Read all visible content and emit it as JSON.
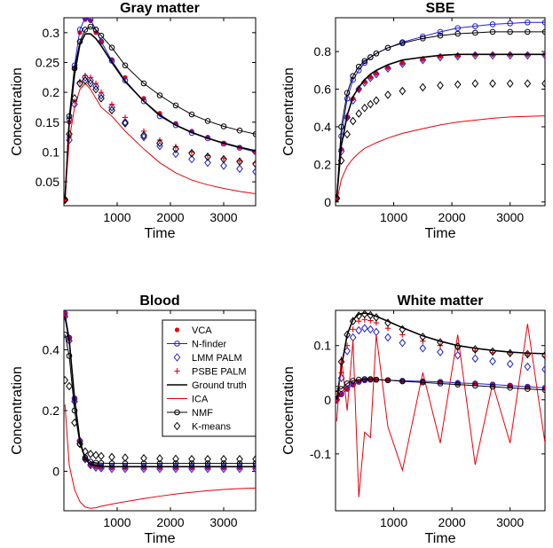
{
  "colors": {
    "vca": "#e8000b",
    "nfinder": "#1f1fd6",
    "lmm": "#1f1fd6",
    "psbe": "#e8000b",
    "truth": "#000000",
    "ica": "#e8000b",
    "nmf": "#000000",
    "kmeans": "#000000"
  },
  "legend": [
    {
      "name": "VCA",
      "marker": "dot",
      "color": "#e8000b"
    },
    {
      "name": "N-finder",
      "marker": "circle-line",
      "color": "#1f1fd6"
    },
    {
      "name": "LMM PALM",
      "marker": "diamond",
      "color": "#1f1fd6"
    },
    {
      "name": "PSBE PALM",
      "marker": "plus",
      "color": "#e8000b"
    },
    {
      "name": "Ground truth",
      "marker": "line",
      "color": "#000000"
    },
    {
      "name": "ICA",
      "marker": "line",
      "color": "#e8000b"
    },
    {
      "name": "NMF",
      "marker": "circle-line",
      "color": "#000000"
    },
    {
      "name": "K-means",
      "marker": "diamond",
      "color": "#000000"
    }
  ],
  "chart_data": [
    {
      "type": "line",
      "title": "Gray matter",
      "xlabel": "Time",
      "ylabel": "Concentration",
      "xlim": [
        0,
        3600
      ],
      "ylim": [
        0.01,
        0.325
      ],
      "xticks": [
        1000,
        2000,
        3000
      ],
      "yticks": [
        0.05,
        0.1,
        0.15,
        0.2,
        0.25,
        0.3
      ],
      "ytick_labels": [
        "0.05",
        "0.1",
        "0.15",
        "0.2",
        "0.25",
        "0.3"
      ],
      "x": [
        20,
        100,
        200,
        300,
        400,
        500,
        600,
        700,
        900,
        1150,
        1500,
        1800,
        2100,
        2400,
        2700,
        3000,
        3300,
        3600
      ],
      "series": [
        {
          "name": "VCA",
          "style": "dot",
          "color": "#e8000b",
          "values": [
            0.02,
            0.15,
            0.24,
            0.3,
            0.322,
            0.32,
            0.3,
            0.285,
            0.255,
            0.225,
            0.19,
            0.165,
            0.148,
            0.135,
            0.125,
            0.115,
            0.108,
            0.1
          ]
        },
        {
          "name": "N-finder",
          "style": "circle-line",
          "color": "#1f1fd6",
          "values": [
            0.02,
            0.155,
            0.245,
            0.305,
            0.325,
            0.322,
            0.305,
            0.285,
            0.253,
            0.22,
            0.185,
            0.16,
            0.145,
            0.132,
            0.123,
            0.114,
            0.107,
            0.1
          ]
        },
        {
          "name": "LMM PALM",
          "style": "diamond",
          "color": "#1f1fd6",
          "values": [
            0.02,
            0.12,
            0.18,
            0.215,
            0.225,
            0.22,
            0.21,
            0.195,
            0.175,
            0.15,
            0.125,
            0.11,
            0.097,
            0.088,
            0.082,
            0.077,
            0.072,
            0.067
          ]
        },
        {
          "name": "PSBE PALM",
          "style": "plus",
          "color": "#e8000b",
          "values": [
            0.02,
            0.125,
            0.185,
            0.218,
            0.228,
            0.225,
            0.215,
            0.2,
            0.18,
            0.158,
            0.135,
            0.12,
            0.109,
            0.1,
            0.094,
            0.089,
            0.085,
            0.082
          ]
        },
        {
          "name": "Ground truth",
          "style": "line",
          "color": "#000000",
          "values": [
            0.02,
            0.15,
            0.23,
            0.28,
            0.298,
            0.298,
            0.29,
            0.278,
            0.25,
            0.218,
            0.185,
            0.162,
            0.145,
            0.133,
            0.123,
            0.115,
            0.108,
            0.102
          ]
        },
        {
          "name": "ICA",
          "style": "line",
          "color": "#e8000b",
          "values": [
            0.02,
            0.12,
            0.175,
            0.205,
            0.215,
            0.205,
            0.19,
            0.175,
            0.16,
            0.135,
            0.105,
            0.082,
            0.065,
            0.053,
            0.045,
            0.039,
            0.034,
            0.03
          ]
        },
        {
          "name": "NMF",
          "style": "circle-line",
          "color": "#000000",
          "values": [
            0.02,
            0.16,
            0.24,
            0.285,
            0.305,
            0.31,
            0.305,
            0.295,
            0.275,
            0.245,
            0.215,
            0.195,
            0.178,
            0.163,
            0.152,
            0.143,
            0.136,
            0.13
          ]
        },
        {
          "name": "K-means",
          "style": "diamond",
          "color": "#000000",
          "values": [
            0.02,
            0.13,
            0.19,
            0.215,
            0.22,
            0.215,
            0.205,
            0.19,
            0.17,
            0.148,
            0.128,
            0.115,
            0.105,
            0.098,
            0.092,
            0.088,
            0.084,
            0.08
          ]
        }
      ]
    },
    {
      "type": "line",
      "title": "SBE",
      "xlabel": "Time",
      "ylabel": "Concentration",
      "xlim": [
        0,
        3600
      ],
      "ylim": [
        -0.02,
        0.98
      ],
      "xticks": [
        1000,
        2000,
        3000
      ],
      "yticks": [
        0,
        0.2,
        0.4,
        0.6,
        0.8
      ],
      "ytick_labels": [
        "0",
        "0.2",
        "0.4",
        "0.6",
        "0.8"
      ],
      "x": [
        20,
        100,
        200,
        300,
        400,
        500,
        600,
        700,
        900,
        1150,
        1500,
        1800,
        2100,
        2400,
        2700,
        3000,
        3300,
        3600
      ],
      "series": [
        {
          "name": "VCA",
          "style": "dot",
          "color": "#e8000b",
          "values": [
            0.02,
            0.28,
            0.45,
            0.55,
            0.6,
            0.64,
            0.665,
            0.685,
            0.715,
            0.74,
            0.76,
            0.775,
            0.78,
            0.785,
            0.785,
            0.785,
            0.785,
            0.785
          ]
        },
        {
          "name": "N-finder",
          "style": "circle-line",
          "color": "#1f1fd6",
          "values": [
            0.02,
            0.35,
            0.55,
            0.65,
            0.7,
            0.74,
            0.77,
            0.79,
            0.82,
            0.85,
            0.88,
            0.905,
            0.925,
            0.935,
            0.945,
            0.95,
            0.955,
            0.955
          ]
        },
        {
          "name": "LMM PALM",
          "style": "diamond",
          "color": "#1f1fd6",
          "values": [
            0.02,
            0.27,
            0.45,
            0.54,
            0.6,
            0.635,
            0.66,
            0.68,
            0.71,
            0.735,
            0.755,
            0.77,
            0.775,
            0.78,
            0.78,
            0.78,
            0.78,
            0.78
          ]
        },
        {
          "name": "PSBE PALM",
          "style": "plus",
          "color": "#e8000b",
          "values": [
            0.02,
            0.28,
            0.46,
            0.55,
            0.6,
            0.64,
            0.665,
            0.685,
            0.715,
            0.74,
            0.76,
            0.775,
            0.78,
            0.785,
            0.785,
            0.785,
            0.785,
            0.785
          ]
        },
        {
          "name": "Ground truth",
          "style": "line",
          "color": "#000000",
          "values": [
            0.02,
            0.3,
            0.46,
            0.56,
            0.61,
            0.65,
            0.68,
            0.7,
            0.73,
            0.755,
            0.77,
            0.78,
            0.785,
            0.785,
            0.785,
            0.785,
            0.785,
            0.785
          ]
        },
        {
          "name": "ICA",
          "style": "line",
          "color": "#e8000b",
          "values": [
            0.0,
            0.12,
            0.19,
            0.23,
            0.26,
            0.285,
            0.3,
            0.315,
            0.34,
            0.365,
            0.39,
            0.41,
            0.425,
            0.435,
            0.445,
            0.452,
            0.455,
            0.458
          ]
        },
        {
          "name": "NMF",
          "style": "circle-line",
          "color": "#000000",
          "values": [
            0.02,
            0.4,
            0.58,
            0.67,
            0.72,
            0.75,
            0.77,
            0.79,
            0.82,
            0.845,
            0.87,
            0.885,
            0.895,
            0.9,
            0.905,
            0.905,
            0.905,
            0.905
          ]
        },
        {
          "name": "K-means",
          "style": "diamond",
          "color": "#000000",
          "values": [
            0.02,
            0.22,
            0.36,
            0.43,
            0.47,
            0.5,
            0.52,
            0.54,
            0.57,
            0.59,
            0.61,
            0.62,
            0.625,
            0.63,
            0.63,
            0.63,
            0.63,
            0.63
          ]
        }
      ]
    },
    {
      "type": "line",
      "title": "Blood",
      "xlabel": "Time",
      "ylabel": "Concentration",
      "xlim": [
        0,
        3600
      ],
      "ylim": [
        -0.13,
        0.53
      ],
      "xticks": [
        1000,
        2000,
        3000
      ],
      "yticks": [
        0,
        0.2,
        0.4
      ],
      "ytick_labels": [
        "0",
        "0.2",
        "0.4"
      ],
      "x": [
        20,
        100,
        200,
        300,
        400,
        500,
        600,
        700,
        900,
        1150,
        1500,
        1800,
        2100,
        2400,
        2700,
        3000,
        3300,
        3600
      ],
      "series": [
        {
          "name": "VCA",
          "style": "dot",
          "color": "#e8000b",
          "values": [
            0.52,
            0.44,
            0.24,
            0.1,
            0.04,
            0.02,
            0.015,
            0.013,
            0.012,
            0.012,
            0.012,
            0.012,
            0.012,
            0.012,
            0.012,
            0.012,
            0.012,
            0.012
          ]
        },
        {
          "name": "N-finder",
          "style": "circle-line",
          "color": "#1f1fd6",
          "values": [
            0.52,
            0.44,
            0.24,
            0.1,
            0.04,
            0.022,
            0.018,
            0.016,
            0.015,
            0.015,
            0.015,
            0.015,
            0.015,
            0.015,
            0.015,
            0.015,
            0.015,
            0.015
          ]
        },
        {
          "name": "LMM PALM",
          "style": "diamond",
          "color": "#1f1fd6",
          "values": [
            0.51,
            0.43,
            0.23,
            0.1,
            0.04,
            0.02,
            0.012,
            0.01,
            0.008,
            0.008,
            0.008,
            0.008,
            0.008,
            0.008,
            0.008,
            0.008,
            0.008,
            0.008
          ]
        },
        {
          "name": "PSBE PALM",
          "style": "plus",
          "color": "#e8000b",
          "values": [
            0.51,
            0.43,
            0.23,
            0.1,
            0.04,
            0.02,
            0.014,
            0.012,
            0.011,
            0.011,
            0.011,
            0.011,
            0.011,
            0.011,
            0.011,
            0.011,
            0.011,
            0.011
          ]
        },
        {
          "name": "Ground truth",
          "style": "line",
          "color": "#000000",
          "values": [
            0.51,
            0.43,
            0.24,
            0.1,
            0.04,
            0.022,
            0.018,
            0.016,
            0.015,
            0.015,
            0.015,
            0.015,
            0.015,
            0.015,
            0.015,
            0.015,
            0.015,
            0.015
          ]
        },
        {
          "name": "ICA",
          "style": "line",
          "color": "#e8000b",
          "values": [
            0.22,
            0.02,
            -0.06,
            -0.1,
            -0.118,
            -0.122,
            -0.12,
            -0.115,
            -0.108,
            -0.1,
            -0.09,
            -0.082,
            -0.075,
            -0.069,
            -0.064,
            -0.06,
            -0.057,
            -0.055
          ]
        },
        {
          "name": "NMF",
          "style": "circle-line",
          "color": "#000000",
          "values": [
            0.45,
            0.38,
            0.2,
            0.09,
            0.045,
            0.032,
            0.028,
            0.027,
            0.026,
            0.026,
            0.026,
            0.026,
            0.026,
            0.026,
            0.026,
            0.026,
            0.026,
            0.026
          ]
        },
        {
          "name": "K-means",
          "style": "diamond",
          "color": "#000000",
          "values": [
            0.3,
            0.28,
            0.16,
            0.09,
            0.065,
            0.057,
            0.053,
            0.05,
            0.047,
            0.045,
            0.043,
            0.042,
            0.041,
            0.04,
            0.04,
            0.04,
            0.04,
            0.04
          ]
        }
      ]
    },
    {
      "type": "line",
      "title": "White matter",
      "xlabel": "Time",
      "ylabel": "Concentration",
      "xlim": [
        0,
        3600
      ],
      "ylim": [
        -0.205,
        0.165
      ],
      "xticks": [
        1000,
        2000,
        3000
      ],
      "yticks": [
        -0.1,
        0,
        0.1
      ],
      "ytick_labels": [
        "-0.1",
        "0",
        "0.1"
      ],
      "x": [
        20,
        100,
        200,
        300,
        400,
        500,
        600,
        700,
        900,
        1150,
        1500,
        1800,
        2100,
        2400,
        2700,
        3000,
        3300,
        3600
      ],
      "series": [
        {
          "name": "VCA",
          "style": "dot",
          "color": "#e8000b",
          "values": [
            0.0,
            0.01,
            0.02,
            0.028,
            0.033,
            0.036,
            0.037,
            0.037,
            0.036,
            0.035,
            0.034,
            0.033,
            0.031,
            0.03,
            0.028,
            0.026,
            0.024,
            0.022
          ]
        },
        {
          "name": "N-finder",
          "style": "circle-line",
          "color": "#1f1fd6",
          "values": [
            0.0,
            0.01,
            0.02,
            0.028,
            0.033,
            0.036,
            0.037,
            0.037,
            0.036,
            0.035,
            0.034,
            0.033,
            0.031,
            0.03,
            0.028,
            0.026,
            0.024,
            0.022
          ]
        },
        {
          "name": "LMM PALM",
          "style": "diamond",
          "color": "#1f1fd6",
          "values": [
            0.0,
            0.04,
            0.09,
            0.115,
            0.128,
            0.132,
            0.13,
            0.125,
            0.115,
            0.105,
            0.095,
            0.088,
            0.082,
            0.076,
            0.071,
            0.066,
            0.061,
            0.056
          ]
        },
        {
          "name": "PSBE PALM",
          "style": "plus",
          "color": "#e8000b",
          "values": [
            0.0,
            0.05,
            0.1,
            0.13,
            0.145,
            0.148,
            0.146,
            0.142,
            0.132,
            0.12,
            0.108,
            0.1,
            0.095,
            0.09,
            0.087,
            0.085,
            0.083,
            0.08
          ]
        },
        {
          "name": "Ground truth",
          "style": "line",
          "color": "#000000",
          "values": [
            0.0,
            0.06,
            0.12,
            0.148,
            0.158,
            0.16,
            0.158,
            0.154,
            0.145,
            0.133,
            0.118,
            0.108,
            0.1,
            0.095,
            0.091,
            0.088,
            0.086,
            0.085
          ]
        },
        {
          "name": "ICA",
          "style": "line",
          "color": "#e8000b",
          "values": [
            -0.04,
            0.08,
            -0.02,
            0.11,
            -0.18,
            -0.06,
            -0.07,
            0.12,
            -0.05,
            -0.13,
            0.05,
            -0.08,
            0.12,
            -0.12,
            0.03,
            -0.08,
            0.14,
            -0.08
          ]
        },
        {
          "name": "NMF",
          "style": "circle-line",
          "color": "#000000",
          "values": [
            0.02,
            0.02,
            0.03,
            0.035,
            0.037,
            0.038,
            0.038,
            0.037,
            0.036,
            0.034,
            0.032,
            0.03,
            0.028,
            0.026,
            0.024,
            0.022,
            0.02,
            0.018
          ]
        },
        {
          "name": "K-means",
          "style": "diamond",
          "color": "#000000",
          "values": [
            0.01,
            0.07,
            0.12,
            0.145,
            0.155,
            0.158,
            0.156,
            0.152,
            0.142,
            0.13,
            0.116,
            0.106,
            0.098,
            0.093,
            0.089,
            0.086,
            0.084,
            0.082
          ]
        }
      ]
    }
  ]
}
